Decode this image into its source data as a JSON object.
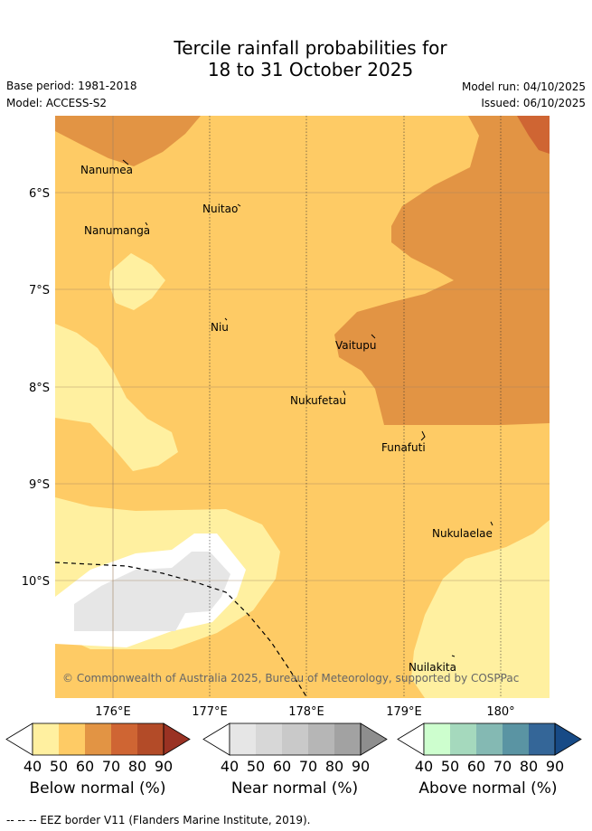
{
  "title_line1": "Tercile rainfall probabilities for",
  "title_line2": "18 to 31 October 2025",
  "base_period": "Base period: 1981-2018",
  "model": "Model: ACCESS-S2",
  "model_run": "Model run: 04/10/2025",
  "issued": "Issued: 06/10/2025",
  "latitude_labels": [
    "6°S",
    "7°S",
    "8°S",
    "9°S",
    "10°S"
  ],
  "longitude_labels": [
    "176°E",
    "177°E",
    "178°E",
    "179°E",
    "180°"
  ],
  "islands": [
    {
      "name": "Nanumea"
    },
    {
      "name": "Nuitao"
    },
    {
      "name": "Nanumanga"
    },
    {
      "name": "Niu"
    },
    {
      "name": "Vaitupu"
    },
    {
      "name": "Nukufetau"
    },
    {
      "name": "Funafuti"
    },
    {
      "name": "Nukulaelae"
    },
    {
      "name": "Nuilakita"
    }
  ],
  "copyright": "© Commonwealth of Australia 2025, Bureau of Meteorology, supported by COSPPac",
  "colorbars": [
    {
      "label": "Below normal (%)",
      "ticks": [
        "40",
        "50",
        "60",
        "70",
        "80",
        "90"
      ],
      "colors": [
        "#ffffff",
        "#fff0a0",
        "#fecb65",
        "#e29444",
        "#cf6533",
        "#b34b28",
        "#9a3223"
      ]
    },
    {
      "label": "Near normal (%)",
      "ticks": [
        "40",
        "50",
        "60",
        "70",
        "80",
        "90"
      ],
      "colors": [
        "#ffffff",
        "#e6e6e6",
        "#d7d7d7",
        "#c9c9c9",
        "#b6b6b6",
        "#a2a2a2",
        "#8e8e8e"
      ]
    },
    {
      "label": "Above normal (%)",
      "ticks": [
        "40",
        "50",
        "60",
        "70",
        "80",
        "90"
      ],
      "colors": [
        "#ffffff",
        "#cdfece",
        "#a5d9bd",
        "#84b9b3",
        "#5a94a3",
        "#346698",
        "#174a86"
      ]
    }
  ],
  "footnote": "-- -- -- EEZ border V11 (Flanders Marine Institute, 2019)."
}
